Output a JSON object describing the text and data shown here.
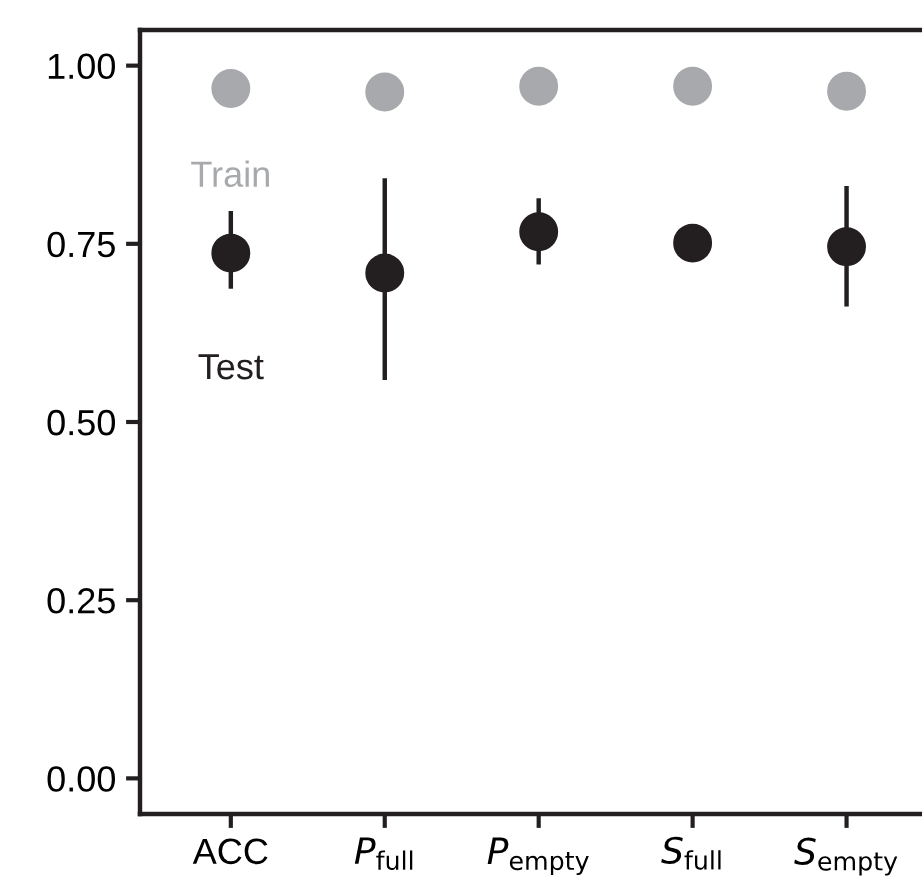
{
  "chart_data": {
    "type": "scatter",
    "categories": [
      "ACC",
      "P$_{full}$",
      "P$_{empty}$",
      "S$_{full}$",
      "S$_{empty}$"
    ],
    "series": [
      {
        "name": "Train",
        "color": "#a7a9ac",
        "values": [
          0.968,
          0.963,
          0.971,
          0.971,
          0.964
        ]
      },
      {
        "name": "Test",
        "color": "#231f20",
        "values": [
          0.737,
          0.709,
          0.767,
          0.751,
          0.746
        ],
        "errors": [
          [
            0.687,
            0.796
          ],
          [
            0.559,
            0.842
          ],
          [
            0.721,
            0.814
          ],
          null,
          [
            0.662,
            0.831
          ]
        ]
      }
    ],
    "ylim": [
      -0.05,
      1.05
    ],
    "yticks": [
      {
        "value": 0,
        "label": "0.00"
      },
      {
        "value": 0.25,
        "label": "0.25"
      },
      {
        "value": 0.5,
        "label": "0.50"
      },
      {
        "value": 0.75,
        "label": "0.75"
      },
      {
        "value": 1,
        "label": "1.00"
      }
    ],
    "grid": false,
    "legend": false,
    "marker": "circle"
  }
}
